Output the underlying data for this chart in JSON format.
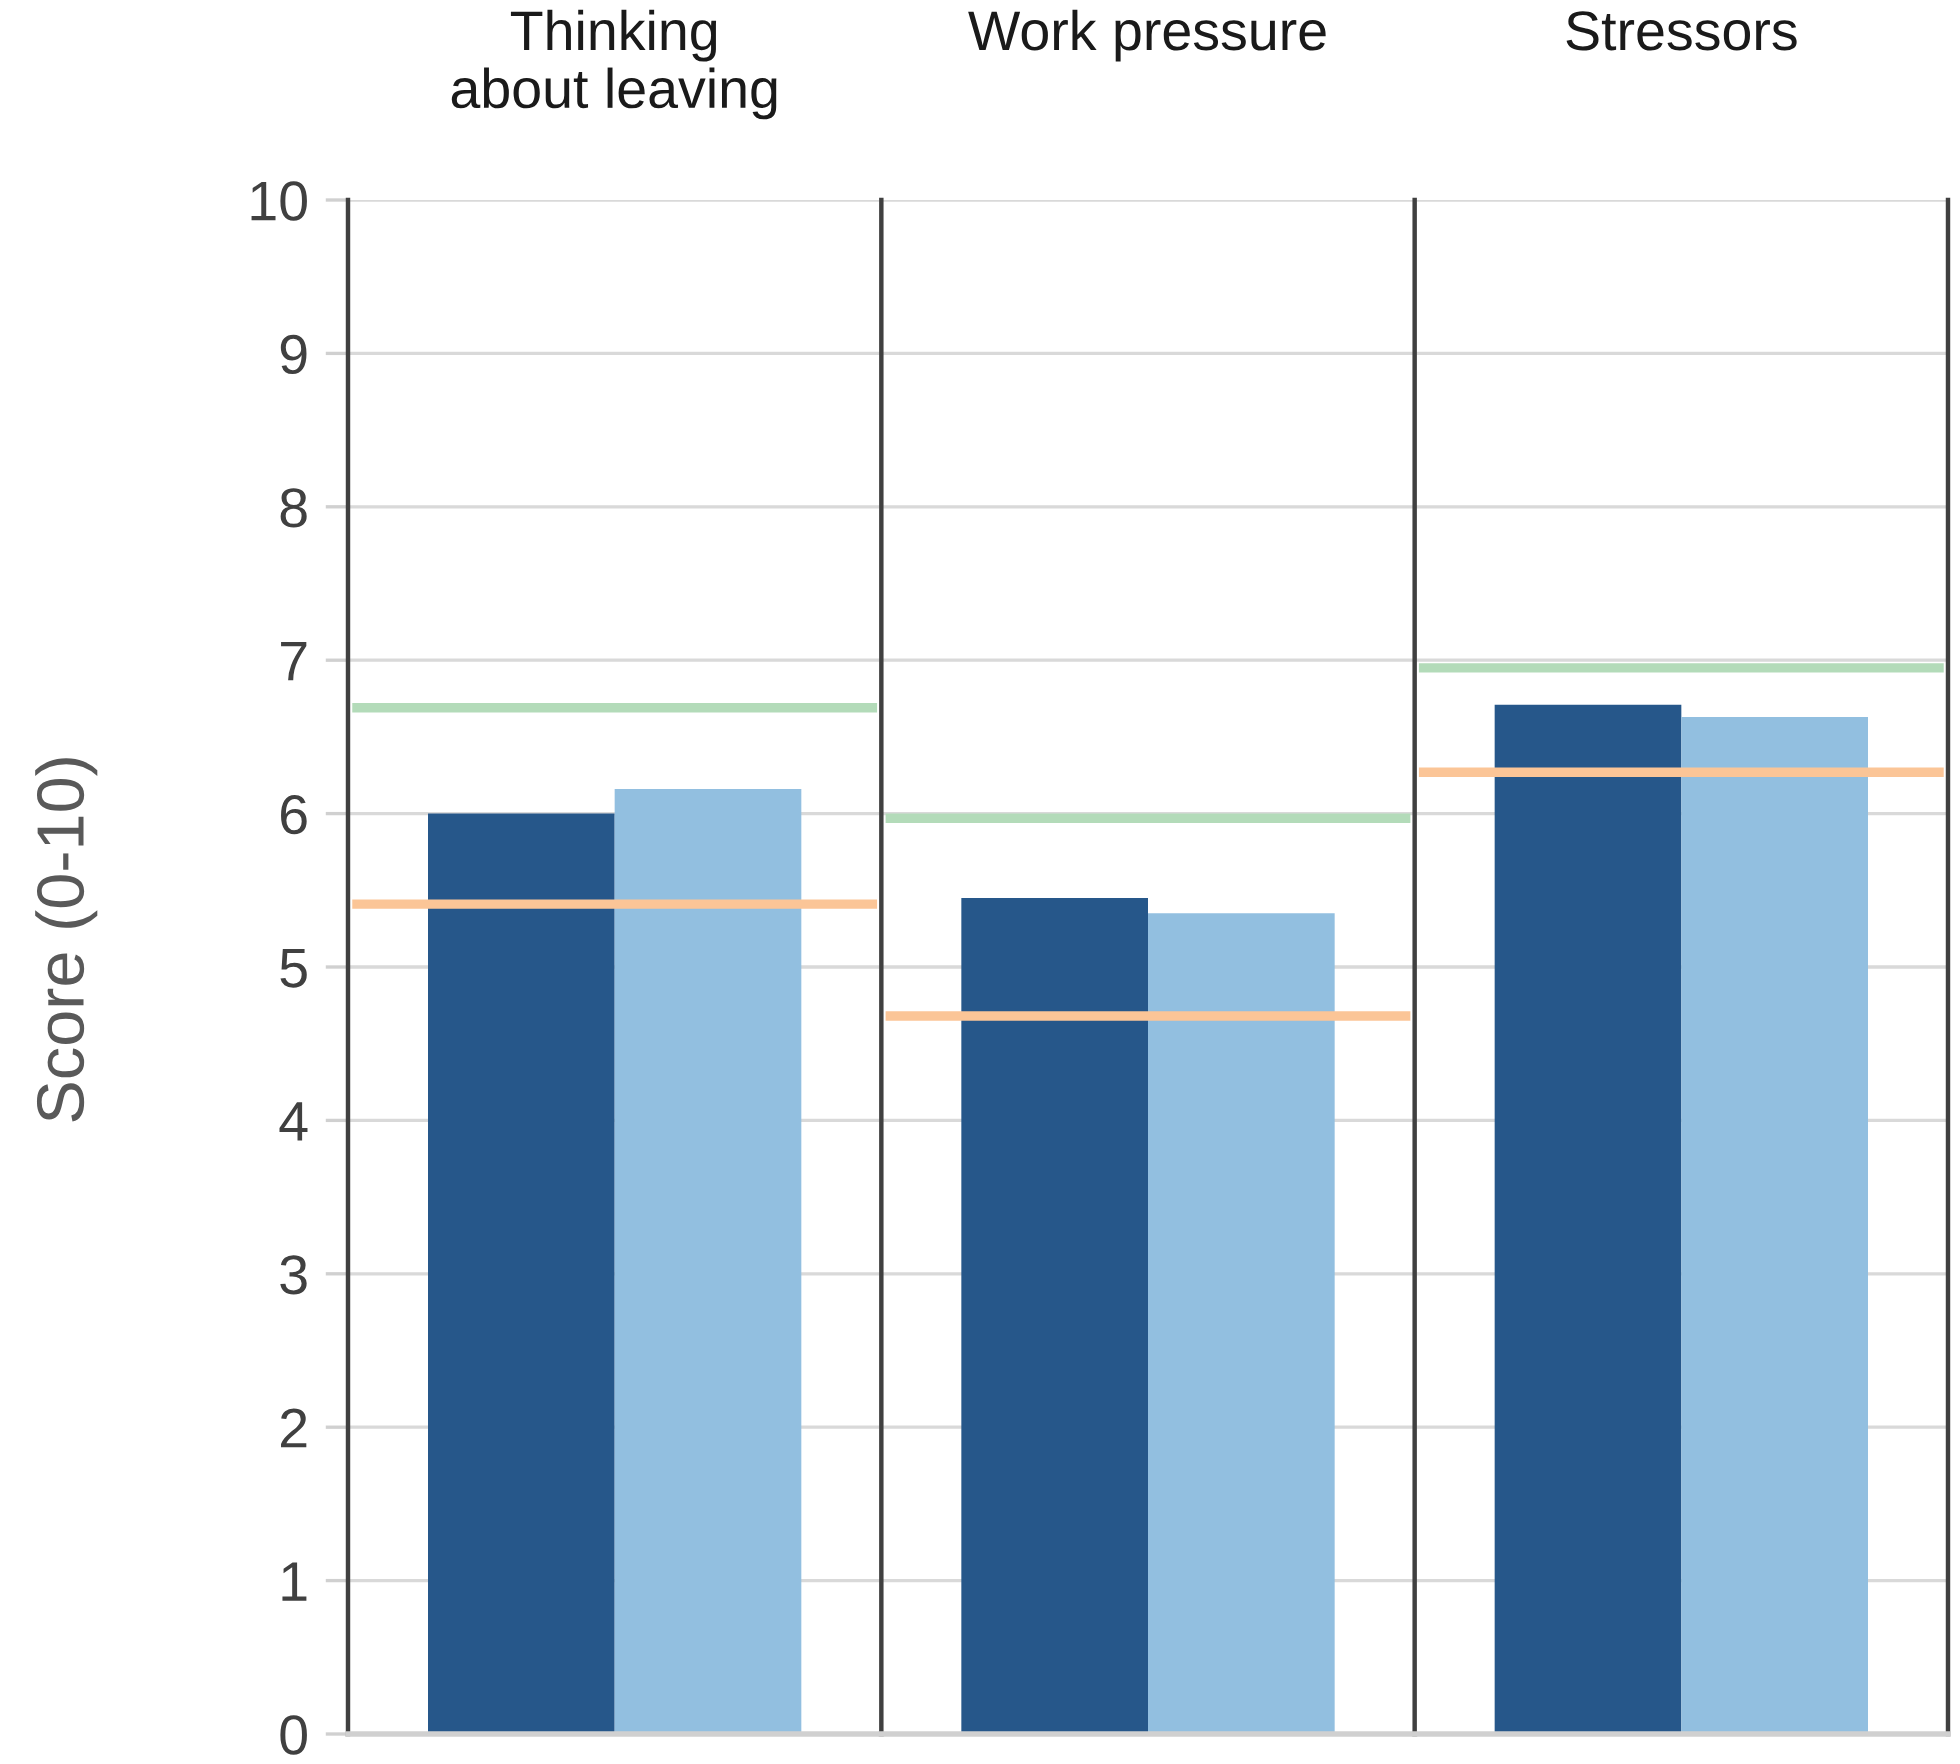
{
  "chart_data": [
    {
      "type": "bar",
      "ylabel": "Score (0-10)",
      "categories": [
        "Thinking\nabout leaving"
      ],
      "series": [
        {
          "color": "#26578a",
          "values": [
            6.0
          ]
        },
        {
          "color": "#92bfe0",
          "values": [
            6.16
          ]
        }
      ],
      "ylim": [
        0,
        10
      ],
      "yticks": [
        0,
        1,
        2,
        3,
        4,
        5,
        6,
        7,
        8,
        9,
        10
      ],
      "grid": "y",
      "ref_lines": [
        {
          "axis": "y",
          "value": 6.69,
          "color": "#b3dbb9"
        },
        {
          "axis": "y",
          "value": 5.41,
          "color": "#fbc597"
        }
      ]
    },
    {
      "type": "bar",
      "categories": [
        "Work pressure"
      ],
      "series": [
        {
          "color": "#26578a",
          "values": [
            5.45
          ]
        },
        {
          "color": "#92bfe0",
          "values": [
            5.35
          ]
        }
      ],
      "ylim": [
        0,
        10
      ],
      "yticks": [
        0,
        1,
        2,
        3,
        4,
        5,
        6,
        7,
        8,
        9,
        10
      ],
      "grid": "y",
      "tick_labels": "x",
      "ref_lines": [
        {
          "axis": "y",
          "value": 5.97,
          "color": "#b3dbb9"
        },
        {
          "axis": "y",
          "value": 4.68,
          "color": "#fbc597"
        }
      ]
    },
    {
      "type": "bar",
      "categories": [
        "Stressors"
      ],
      "series": [
        {
          "color": "#26578a",
          "values": [
            6.71
          ]
        },
        {
          "color": "#92bfe0",
          "values": [
            6.63
          ]
        }
      ],
      "ylim": [
        0,
        10
      ],
      "yticks": [
        0,
        1,
        2,
        3,
        4,
        5,
        6,
        7,
        8,
        9,
        10
      ],
      "grid": "y",
      "tick_labels": "x",
      "ref_lines": [
        {
          "axis": "y",
          "value": 6.95,
          "color": "#b3dbb9"
        },
        {
          "axis": "y",
          "value": 6.27,
          "color": "#fbc597"
        }
      ]
    }
  ]
}
